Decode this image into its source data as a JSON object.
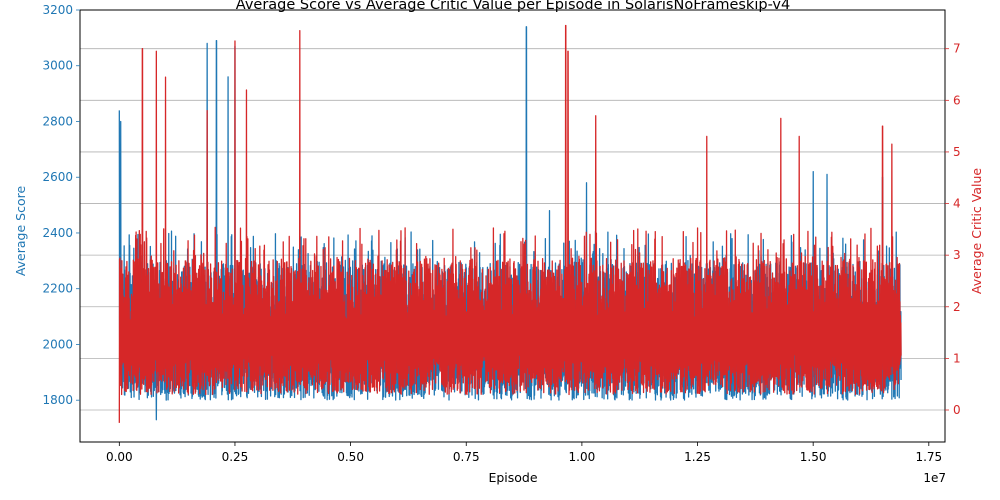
{
  "chart_data": {
    "type": "line",
    "title": "Average Score vs Average Critic Value per Episode in SolarisNoFrameskip-v4",
    "xlabel": "Episode",
    "x_multiplier_label": "1e7",
    "x_tick_labels": [
      "0.00",
      "0.25",
      "0.50",
      "0.75",
      "1.00",
      "1.25",
      "1.50",
      "1.75"
    ],
    "x_ticks": [
      0,
      0.25,
      0.5,
      0.75,
      1.0,
      1.25,
      1.5,
      1.75
    ],
    "xlim": [
      -0.085,
      1.785
    ],
    "grid": "horizontal, right axis",
    "left_axis": {
      "label": "Average Score",
      "color": "#1f77b4",
      "ylim": [
        1650,
        3200
      ],
      "ticks": [
        1800,
        2000,
        2200,
        2400,
        2600,
        2800,
        3000,
        3200
      ],
      "tick_labels": [
        "1800",
        "2000",
        "2200",
        "2400",
        "2600",
        "2800",
        "3000",
        "3200"
      ]
    },
    "right_axis": {
      "label": "Average Critic Value",
      "color": "#d62728",
      "ylim": [
        -0.62,
        7.75
      ],
      "ticks": [
        0,
        1,
        2,
        3,
        4,
        5,
        6,
        7
      ],
      "tick_labels": [
        "0",
        "1",
        "2",
        "3",
        "4",
        "5",
        "6",
        "7"
      ]
    },
    "series": [
      {
        "axis": "left",
        "color": "#1f77b4",
        "baseline": [
          1800,
          2250
        ],
        "peaks": [
          [
            0.0,
            2840
          ],
          [
            0.003,
            2800
          ],
          [
            0.08,
            1730
          ],
          [
            0.19,
            3080
          ],
          [
            0.21,
            3090
          ],
          [
            0.235,
            2960
          ],
          [
            0.25,
            3070
          ],
          [
            0.88,
            3140
          ],
          [
            0.93,
            2480
          ],
          [
            1.01,
            2580
          ],
          [
            1.5,
            2620
          ],
          [
            1.53,
            2610
          ],
          [
            1.65,
            2600
          ]
        ],
        "x_end": 1.69
      },
      {
        "axis": "right",
        "color": "#d62728",
        "baseline": [
          0.3,
          2.7
        ],
        "peaks": [
          [
            0.0,
            -0.25
          ],
          [
            0.05,
            7.0
          ],
          [
            0.08,
            6.95
          ],
          [
            0.1,
            6.45
          ],
          [
            0.19,
            5.8
          ],
          [
            0.25,
            7.15
          ],
          [
            0.275,
            6.2
          ],
          [
            0.39,
            7.35
          ],
          [
            0.965,
            7.45
          ],
          [
            0.97,
            6.95
          ],
          [
            1.03,
            5.7
          ],
          [
            1.27,
            5.3
          ],
          [
            1.43,
            5.65
          ],
          [
            1.47,
            5.3
          ],
          [
            1.65,
            5.5
          ],
          [
            1.67,
            5.15
          ]
        ],
        "x_end": 1.69
      }
    ]
  }
}
